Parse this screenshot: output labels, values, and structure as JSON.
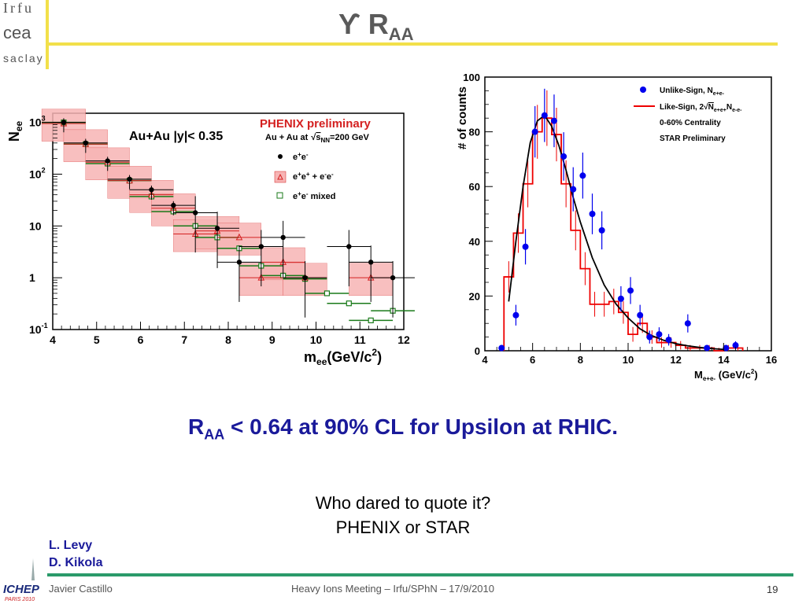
{
  "header": {
    "logo_top": "Irfu",
    "logo_middle": "cea",
    "logo_bottom": "saclay",
    "title_main": "ϒ R",
    "title_sub": "AA"
  },
  "statement": {
    "r": "R",
    "sub": "AA",
    "rest": " < 0.64 at 90% CL for Upsilon at RHIC."
  },
  "question": {
    "line1": "Who dared to quote it?",
    "line2": "PHENIX or STAR"
  },
  "authors": [
    "L. Levy",
    "D. Kikola"
  ],
  "footer": {
    "author": "Javier Castillo",
    "meeting": "Heavy Ions Meeting – Irfu/SPhN – 17/9/2010",
    "page": "19",
    "logo_text": "ICHEP",
    "logo_sub": "PARIS 2010"
  },
  "colors": {
    "title_gray": "#5a5a5a",
    "statement_blue": "#1a1a9a",
    "header_yellow": "#f2e04a",
    "footer_green": "#2a9a6a",
    "phenix_red": "#d42020",
    "phenix_green": "#1a7a1a",
    "star_blue": "#0000ee",
    "star_red": "#ee0000"
  },
  "chart_data": [
    {
      "type": "scatter",
      "title": "",
      "annotation_system": "Au+Au |y|< 0.35",
      "annotation_collab": "PHENIX preliminary",
      "annotation_energy": "Au + Au  at",
      "annotation_sqrt": "s",
      "annotation_sqrt_sub": "NN",
      "annotation_energy_val": "=200 GeV",
      "xlabel_main": "m",
      "xlabel_sub": "ee",
      "xlabel_unit": "(GeV/c",
      "xlabel_sup": "2",
      "xlabel_close": ")",
      "ylabel_main": "N",
      "ylabel_sub": "ee",
      "xlim": [
        4,
        12
      ],
      "ylim": [
        0.1,
        1500
      ],
      "yscale": "log",
      "x_ticks": [
        "4",
        "5",
        "6",
        "7",
        "8",
        "9",
        "10",
        "11",
        "12"
      ],
      "y_ticks": [
        {
          "value": 0.1,
          "base": "10",
          "exp": "-1"
        },
        {
          "value": 1,
          "base": "1",
          "exp": ""
        },
        {
          "value": 10,
          "base": "10",
          "exp": ""
        },
        {
          "value": 100,
          "base": "10",
          "exp": "2"
        },
        {
          "value": 1000,
          "base": "10",
          "exp": "3"
        }
      ],
      "legend": [
        {
          "label_a": "e",
          "sup_a": "+",
          "label_b": "e",
          "sup_b": "-",
          "label_c": ""
        },
        {
          "label_a": "e",
          "sup_a": "+",
          "label_b": "e",
          "sup_b": "+",
          "label_c": " + e",
          "sup_c": "-",
          "label_d": "e",
          "sup_d": "-"
        },
        {
          "label_a": "e",
          "sup_a": "+",
          "label_b": "e",
          "sup_b": "-",
          "label_c": " mixed"
        }
      ],
      "legend_position": "top-right",
      "series": [
        {
          "name": "e+e-",
          "marker": "filled-circle",
          "points": [
            {
              "x": 4.25,
              "y": 1000
            },
            {
              "x": 4.75,
              "y": 400
            },
            {
              "x": 5.25,
              "y": 180
            },
            {
              "x": 5.75,
              "y": 80
            },
            {
              "x": 6.25,
              "y": 50
            },
            {
              "x": 6.75,
              "y": 25
            },
            {
              "x": 7.25,
              "y": 18
            },
            {
              "x": 7.75,
              "y": 9
            },
            {
              "x": 8.25,
              "y": 2
            },
            {
              "x": 8.75,
              "y": 4
            },
            {
              "x": 9.25,
              "y": 6
            },
            {
              "x": 9.75,
              "y": 1
            },
            {
              "x": 10.75,
              "y": 4
            },
            {
              "x": 11.25,
              "y": 2
            },
            {
              "x": 11.75,
              "y": 1
            }
          ]
        },
        {
          "name": "e+e+ + e-e-",
          "marker": "open-triangle",
          "points": [
            {
              "x": 4.25,
              "y": 950
            },
            {
              "x": 4.75,
              "y": 380
            },
            {
              "x": 5.25,
              "y": 170
            },
            {
              "x": 5.75,
              "y": 75
            },
            {
              "x": 6.25,
              "y": 40
            },
            {
              "x": 6.75,
              "y": 22
            },
            {
              "x": 7.25,
              "y": 7
            },
            {
              "x": 7.75,
              "y": 8
            },
            {
              "x": 8.25,
              "y": 6
            },
            {
              "x": 8.75,
              "y": 1
            },
            {
              "x": 9.25,
              "y": 2
            },
            {
              "x": 9.75,
              "y": 1
            },
            {
              "x": 11.25,
              "y": 1
            }
          ]
        },
        {
          "name": "e+e- mixed",
          "marker": "open-square",
          "points": [
            {
              "x": 4.25,
              "y": 1000
            },
            {
              "x": 4.75,
              "y": 380
            },
            {
              "x": 5.25,
              "y": 160
            },
            {
              "x": 5.75,
              "y": 75
            },
            {
              "x": 6.25,
              "y": 37
            },
            {
              "x": 6.75,
              "y": 19
            },
            {
              "x": 7.25,
              "y": 10
            },
            {
              "x": 7.75,
              "y": 6
            },
            {
              "x": 8.25,
              "y": 3.7
            },
            {
              "x": 8.75,
              "y": 1.7
            },
            {
              "x": 9.25,
              "y": 1.1
            },
            {
              "x": 9.75,
              "y": 0.95
            },
            {
              "x": 10.25,
              "y": 0.5
            },
            {
              "x": 10.75,
              "y": 0.32
            },
            {
              "x": 11.25,
              "y": 0.15
            },
            {
              "x": 11.75,
              "y": 0.23
            }
          ]
        }
      ]
    },
    {
      "type": "scatter",
      "title": "",
      "xlabel_main": "M",
      "xlabel_sub": "e+e-",
      "xlabel_unit": " (GeV/c",
      "xlabel_sup": "2",
      "xlabel_close": ")",
      "ylabel": "# of counts",
      "xlim": [
        4,
        16
      ],
      "ylim": [
        0,
        100
      ],
      "x_ticks": [
        "4",
        "6",
        "8",
        "10",
        "12",
        "14",
        "16"
      ],
      "y_ticks": [
        "0",
        "20",
        "40",
        "60",
        "80",
        "100"
      ],
      "legend": [
        {
          "label": "Unlike-Sign, N",
          "sub": "e+e-"
        },
        {
          "label": "Like-Sign, 2",
          "sqrt": "N",
          "sqrt_sub1": "e+e+",
          "sqrt_n2": "N",
          "sqrt_sub2": "e-e-"
        },
        {
          "label": "0-60% Centrality"
        },
        {
          "label": "STAR Preliminary"
        }
      ],
      "legend_position": "top-right",
      "series": [
        {
          "name": "Unlike-Sign",
          "marker": "filled-circle",
          "points": [
            {
              "x": 4.7,
              "y": 1
            },
            {
              "x": 5.3,
              "y": 13
            },
            {
              "x": 5.7,
              "y": 38
            },
            {
              "x": 6.1,
              "y": 80
            },
            {
              "x": 6.5,
              "y": 86
            },
            {
              "x": 6.9,
              "y": 84
            },
            {
              "x": 7.3,
              "y": 71
            },
            {
              "x": 7.7,
              "y": 59
            },
            {
              "x": 8.1,
              "y": 64
            },
            {
              "x": 8.5,
              "y": 50
            },
            {
              "x": 8.9,
              "y": 44
            },
            {
              "x": 9.7,
              "y": 19
            },
            {
              "x": 10.1,
              "y": 22
            },
            {
              "x": 10.5,
              "y": 13
            },
            {
              "x": 10.9,
              "y": 5
            },
            {
              "x": 11.3,
              "y": 6
            },
            {
              "x": 11.7,
              "y": 4
            },
            {
              "x": 12.5,
              "y": 10
            },
            {
              "x": 13.3,
              "y": 1
            },
            {
              "x": 14.1,
              "y": 1
            },
            {
              "x": 14.5,
              "y": 2
            }
          ]
        },
        {
          "name": "Like-Sign",
          "marker": "histogram",
          "bins": [
            {
              "x0": 4.8,
              "x1": 5.2,
              "y": 27
            },
            {
              "x0": 5.2,
              "y": 43,
              "x1": 5.6
            },
            {
              "x0": 5.6,
              "x1": 6.0,
              "y": 61
            },
            {
              "x0": 6.0,
              "x1": 6.4,
              "y": 80
            },
            {
              "x0": 6.4,
              "x1": 6.8,
              "y": 85
            },
            {
              "x0": 6.8,
              "x1": 7.2,
              "y": 79
            },
            {
              "x0": 7.2,
              "x1": 7.6,
              "y": 61
            },
            {
              "x0": 7.6,
              "x1": 8.0,
              "y": 44
            },
            {
              "x0": 8.0,
              "x1": 8.4,
              "y": 30
            },
            {
              "x0": 8.4,
              "x1": 8.8,
              "y": 17
            },
            {
              "x0": 8.8,
              "x1": 9.2,
              "y": 17
            },
            {
              "x0": 9.2,
              "x1": 9.6,
              "y": 18
            },
            {
              "x0": 9.6,
              "x1": 10.0,
              "y": 14
            },
            {
              "x0": 10.0,
              "x1": 10.4,
              "y": 6
            },
            {
              "x0": 10.4,
              "x1": 10.8,
              "y": 10
            },
            {
              "x0": 10.8,
              "x1": 11.2,
              "y": 5
            },
            {
              "x0": 11.2,
              "x1": 11.6,
              "y": 3
            },
            {
              "x0": 11.6,
              "x1": 12.0,
              "y": 3
            },
            {
              "x0": 12.0,
              "x1": 12.4,
              "y": 2
            },
            {
              "x0": 12.4,
              "x1": 12.8,
              "y": 1
            },
            {
              "x0": 12.8,
              "x1": 13.2,
              "y": 1
            },
            {
              "x0": 13.2,
              "x1": 13.6,
              "y": 1
            },
            {
              "x0": 13.6,
              "x1": 14.0,
              "y": 0
            },
            {
              "x0": 14.0,
              "x1": 14.4,
              "y": 1
            },
            {
              "x0": 14.4,
              "x1": 14.8,
              "y": 1
            }
          ]
        },
        {
          "name": "fit",
          "marker": "line",
          "points": [
            {
              "x": 5.0,
              "y": 18
            },
            {
              "x": 5.3,
              "y": 40
            },
            {
              "x": 5.6,
              "y": 60
            },
            {
              "x": 5.9,
              "y": 76
            },
            {
              "x": 6.2,
              "y": 84
            },
            {
              "x": 6.5,
              "y": 86
            },
            {
              "x": 6.8,
              "y": 82
            },
            {
              "x": 7.1,
              "y": 75
            },
            {
              "x": 7.4,
              "y": 66
            },
            {
              "x": 7.7,
              "y": 56
            },
            {
              "x": 8.0,
              "y": 47
            },
            {
              "x": 8.5,
              "y": 34
            },
            {
              "x": 9.0,
              "y": 24
            },
            {
              "x": 9.5,
              "y": 17
            },
            {
              "x": 10.0,
              "y": 12
            },
            {
              "x": 10.5,
              "y": 8
            },
            {
              "x": 11.0,
              "y": 5.5
            },
            {
              "x": 11.5,
              "y": 3.8
            },
            {
              "x": 12.0,
              "y": 2.6
            },
            {
              "x": 12.5,
              "y": 1.8
            },
            {
              "x": 13.0,
              "y": 1.2
            },
            {
              "x": 13.5,
              "y": 0.8
            },
            {
              "x": 14.0,
              "y": 0.5
            }
          ]
        }
      ]
    }
  ]
}
